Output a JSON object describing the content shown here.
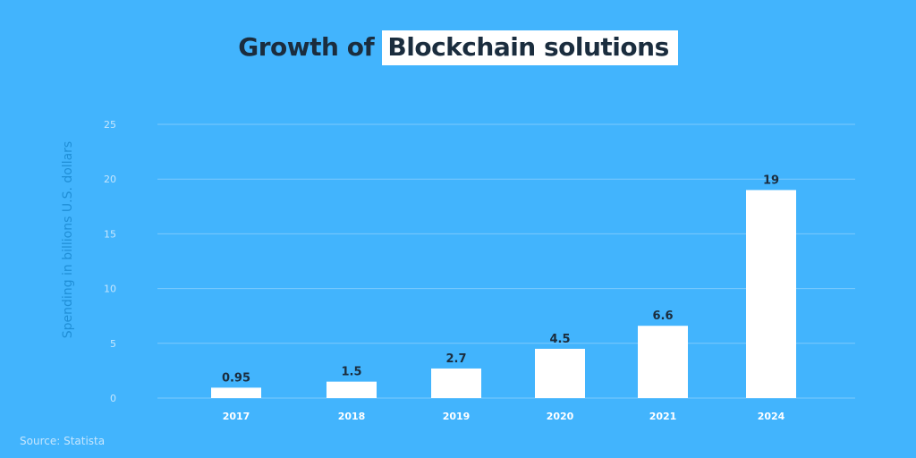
{
  "chart_data": {
    "type": "bar",
    "title_prefix": "Growth of",
    "title_highlight": "Blockchain solutions",
    "xlabel": "",
    "ylabel": "Spending in billions U.S. dollars",
    "categories": [
      "2017",
      "2018",
      "2019",
      "2020",
      "2021",
      "2024"
    ],
    "values": [
      0.95,
      1.5,
      2.7,
      4.5,
      6.6,
      19
    ],
    "value_labels": [
      "0.95",
      "1.5",
      "2.7",
      "4.5",
      "6.6",
      "19"
    ],
    "ylim": [
      0,
      25
    ],
    "yticks": [
      "0",
      "5",
      "10",
      "15",
      "20",
      "25"
    ],
    "grid": true,
    "colors": {
      "background": "#42b4fd",
      "bar": "#ffffff",
      "title": "#1b2d3e",
      "grid": "#7ccafd",
      "tick_text": "#c6e6fd",
      "value_label": "#1b2d3e"
    }
  },
  "source": "Source: Statista"
}
